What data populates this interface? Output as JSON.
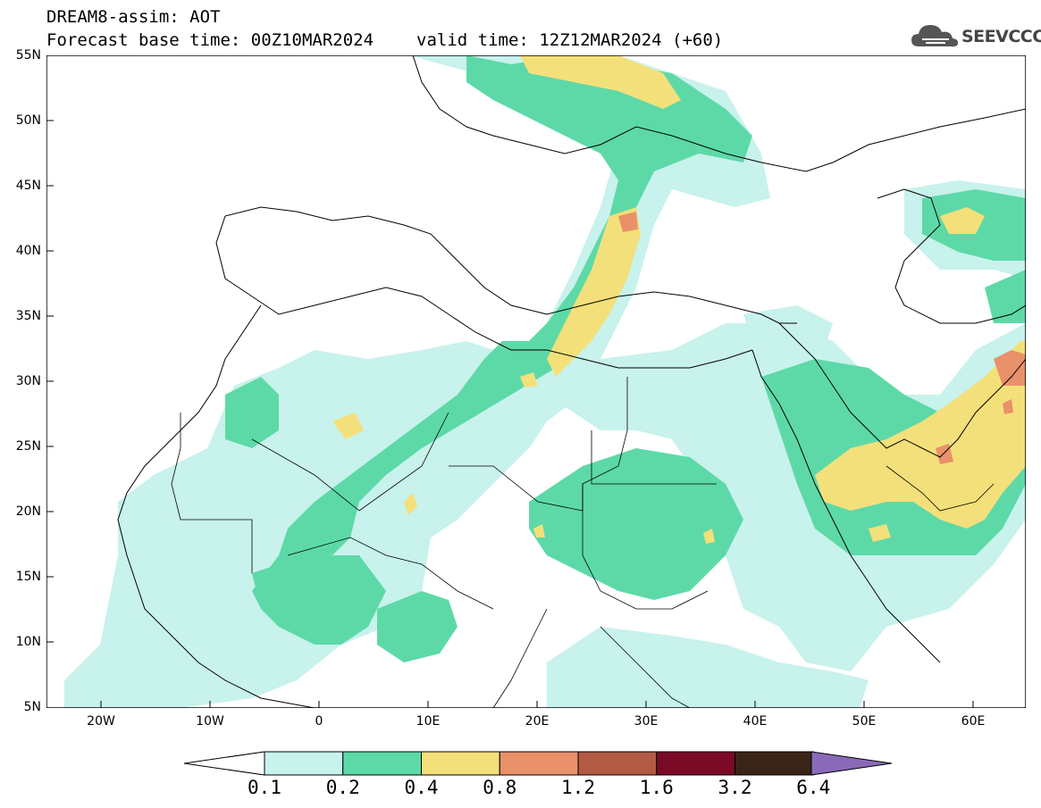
{
  "header": {
    "model_line": "DREAM8-assim: AOT",
    "base_time": "Forecast base time: 00Z10MAR2024",
    "valid_time": "valid time: 12Z12MAR2024 (+60)"
  },
  "logo": {
    "text": "SEEVCCC"
  },
  "map": {
    "lat_labels": [
      "55N",
      "50N",
      "45N",
      "40N",
      "35N",
      "30N",
      "25N",
      "20N",
      "15N",
      "10N",
      "5N"
    ],
    "lon_labels": [
      "20W",
      "10W",
      "0",
      "10E",
      "20E",
      "30E",
      "40E",
      "50E",
      "60E"
    ]
  },
  "legend": {
    "labels": [
      "0.1",
      "0.2",
      "0.4",
      "0.8",
      "1.2",
      "1.6",
      "3.2",
      "6.4"
    ],
    "colors": [
      "#c8f2ec",
      "#5dd9a8",
      "#f4e07a",
      "#e8916a",
      "#b35a45",
      "#7a0a26",
      "#3a2418",
      "#8a6ab8"
    ]
  }
}
